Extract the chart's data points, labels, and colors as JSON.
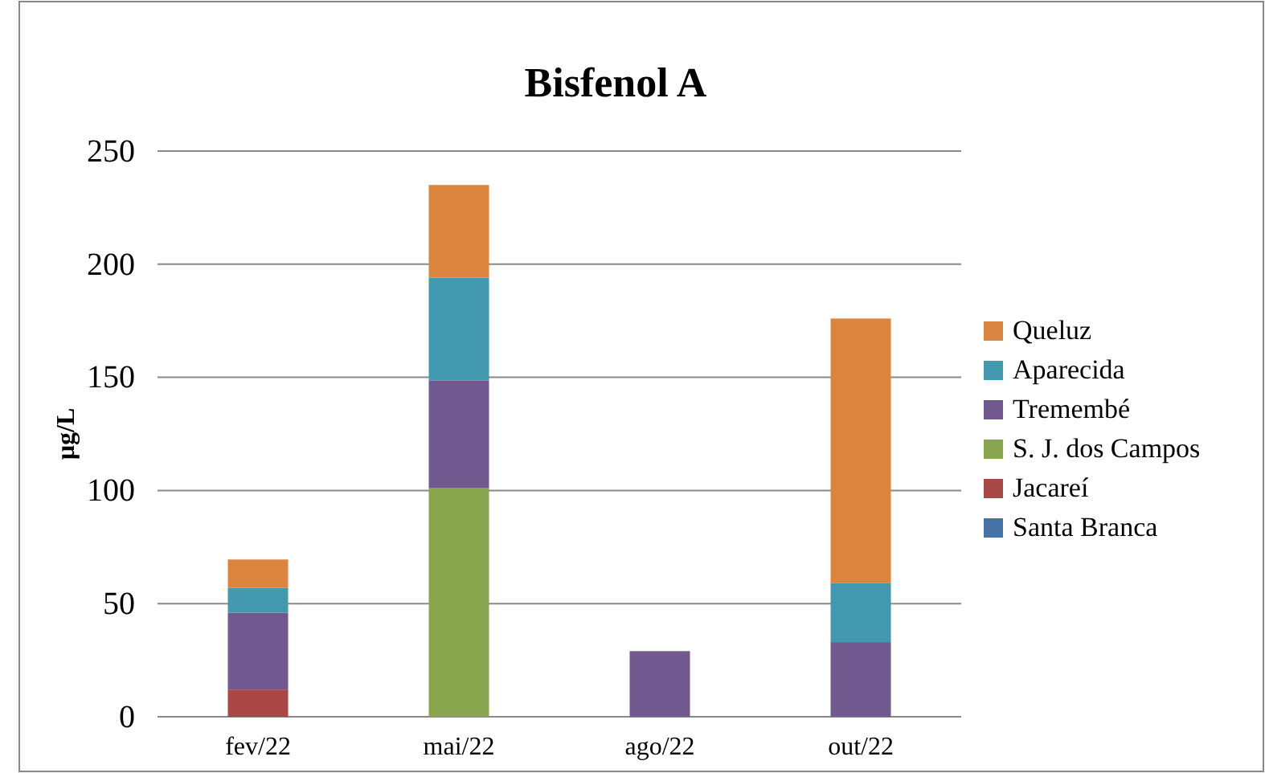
{
  "chart_data": {
    "type": "bar",
    "title": "Bisfenol A",
    "ylabel": "µg/L",
    "categories": [
      "fev/22",
      "mai/22",
      "ago/22",
      "out/22"
    ],
    "stacked": true,
    "ylim": [
      0,
      250
    ],
    "yticks": [
      0,
      50,
      100,
      150,
      200,
      250
    ],
    "grid": "y",
    "legend": "right",
    "series": [
      {
        "name": "Santa Branca",
        "color": "#4572a7",
        "values": [
          0,
          0,
          0,
          0
        ]
      },
      {
        "name": "Jacareí",
        "color": "#aa4643",
        "values": [
          12,
          0,
          0,
          0
        ]
      },
      {
        "name": "S. J. dos Campos",
        "color": "#89a54e",
        "values": [
          0,
          101,
          0,
          0
        ]
      },
      {
        "name": "Tremembé",
        "color": "#71588f",
        "values": [
          34,
          47.5,
          29,
          33
        ]
      },
      {
        "name": "Aparecida",
        "color": "#4198af",
        "values": [
          11,
          45.5,
          0,
          26
        ]
      },
      {
        "name": "Queluz",
        "color": "#db843d",
        "values": [
          12.5,
          41,
          0,
          117
        ]
      }
    ]
  }
}
